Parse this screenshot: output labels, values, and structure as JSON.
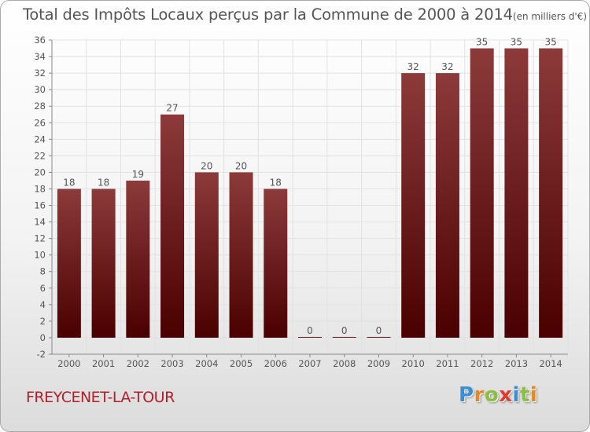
{
  "title": "Total des Impôts Locaux perçus par la Commune de 2000 à 2014",
  "title_unit": "(en milliers d'€)",
  "commune_name": "FREYCENET-LA-TOUR",
  "brand": {
    "letters": [
      "P",
      "r",
      "o",
      "x",
      "i",
      "t",
      "i"
    ],
    "colors": [
      "#3a8ed1",
      "#e0892a",
      "#8cbf3f",
      "#e23b2e",
      "#3a8ed1",
      "#8cbf3f",
      "#e0892a"
    ]
  },
  "chart_data": {
    "type": "bar",
    "categories": [
      "2000",
      "2001",
      "2002",
      "2003",
      "2004",
      "2005",
      "2006",
      "2007",
      "2008",
      "2009",
      "2010",
      "2011",
      "2012",
      "2013",
      "2014"
    ],
    "values": [
      18,
      18,
      19,
      27,
      20,
      20,
      18,
      0,
      0,
      0,
      32,
      32,
      35,
      35,
      35
    ],
    "data_labels": [
      "18",
      "18",
      "19",
      "27",
      "20",
      "20",
      "18",
      "0",
      "0",
      "0",
      "32",
      "32",
      "35",
      "35",
      "35"
    ],
    "ylim": [
      -2,
      36
    ],
    "yticks": [
      -2,
      0,
      2,
      4,
      6,
      8,
      10,
      12,
      14,
      16,
      18,
      20,
      22,
      24,
      26,
      28,
      30,
      32,
      34,
      36
    ],
    "grid": true,
    "bar_color_top": "#8c3a3a",
    "bar_color_bottom": "#4a0000"
  }
}
